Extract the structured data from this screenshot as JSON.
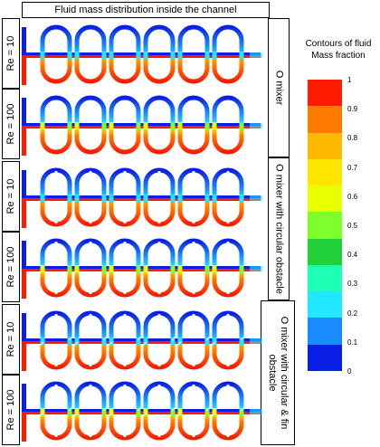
{
  "title": "Fluid mass distribution inside the channel",
  "re_labels": [
    "Re = 10",
    "Re = 100",
    "Re = 10",
    "Re = 100",
    "Re = 10",
    "Re = 100"
  ],
  "mixers": [
    {
      "label": "O mixer"
    },
    {
      "label": "O mixer with circular obstacle"
    },
    {
      "label": "O mixer with circular & fin obstacle"
    }
  ],
  "legend": {
    "title_line1": "Contours of fluid",
    "title_line2": "Mass fraction",
    "ticks": [
      "1",
      "0.9",
      "0.8",
      "0.7",
      "0.6",
      "0.5",
      "0.4",
      "0.3",
      "0.2",
      "0.1",
      "0"
    ],
    "colors": [
      "#ff1a00",
      "#ff7a00",
      "#ffb800",
      "#ffe600",
      "#e8ff00",
      "#7cff2a",
      "#22d13a",
      "#1cffb4",
      "#22e8ff",
      "#1a8cff",
      "#0a1fe6"
    ]
  }
}
